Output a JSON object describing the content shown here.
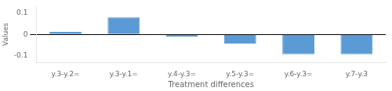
{
  "chart_data": {
    "type": "bar",
    "categories": [
      "y.3-y.2=",
      "y.3-y.1=",
      "y.4-y.3=",
      "y.5-y.3=",
      "y.6-y.3=",
      "y.7-y.3"
    ],
    "values": [
      0.012,
      0.08,
      -0.01,
      -0.042,
      -0.092,
      -0.092
    ],
    "color": "#5B9BD5",
    "xlabel": "Treatment differences",
    "ylabel": "Values",
    "ylim": [
      -0.13,
      0.13
    ],
    "yticks": [
      -0.1,
      0,
      0.1
    ],
    "grid": false
  }
}
